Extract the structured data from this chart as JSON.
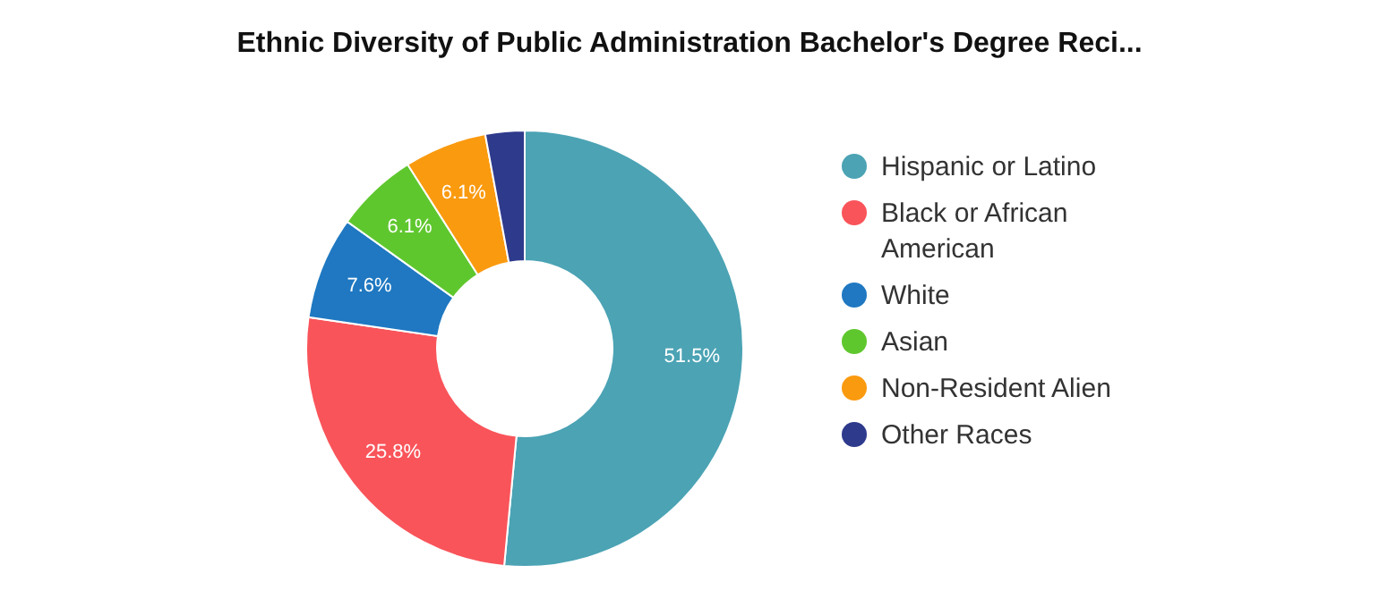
{
  "chart_data": {
    "type": "donut",
    "title": "Ethnic Diversity of Public Administration Bachelor's Degree Reci...",
    "categories": [
      "Hispanic or Latino",
      "Black or African American",
      "White",
      "Asian",
      "Non-Resident Alien",
      "Other Races"
    ],
    "values": [
      51.5,
      25.8,
      7.6,
      6.1,
      6.1,
      2.9
    ],
    "value_labels": [
      "51.5%",
      "25.8%",
      "7.6%",
      "6.1%",
      "6.1%",
      null
    ],
    "colors": [
      "#4ba3b4",
      "#f9545a",
      "#1f78c1",
      "#5fc72e",
      "#fa9a0f",
      "#2e3a8c"
    ],
    "legend": "right"
  }
}
